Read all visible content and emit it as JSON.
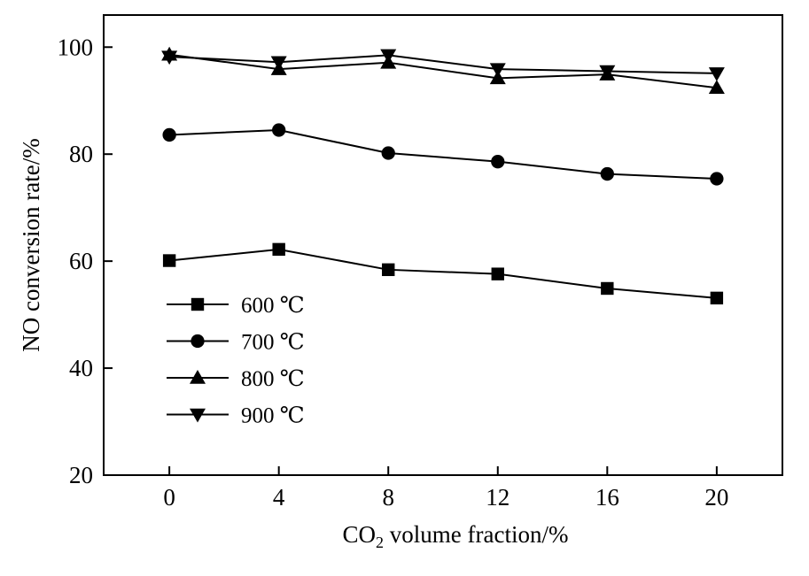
{
  "chart_data": {
    "type": "line",
    "xlabel_main": "CO",
    "xlabel_sub": "2",
    "xlabel_rest": " volume fraction/%",
    "ylabel": "NO conversion rate/%",
    "xlim": [
      -2.4,
      22.4
    ],
    "ylim": [
      20,
      106
    ],
    "x_ticks": [
      0,
      4,
      8,
      12,
      16,
      20
    ],
    "x_tick_labels": [
      "0",
      "4",
      "8",
      "12",
      "16",
      "20"
    ],
    "y_ticks": [
      20,
      40,
      60,
      80,
      100
    ],
    "y_tick_labels": [
      "20",
      "40",
      "60",
      "80",
      "100"
    ],
    "x": [
      0,
      4,
      8,
      12,
      16,
      20
    ],
    "series": [
      {
        "name": "600 ℃",
        "marker": "square",
        "values": [
          60.1,
          62.2,
          58.4,
          57.6,
          54.9,
          53.1
        ]
      },
      {
        "name": "700 ℃",
        "marker": "circle",
        "values": [
          83.6,
          84.5,
          80.2,
          78.6,
          76.3,
          75.4
        ]
      },
      {
        "name": "800 ℃",
        "marker": "triangle-up",
        "values": [
          98.6,
          95.9,
          97.1,
          94.2,
          94.9,
          92.4
        ]
      },
      {
        "name": "900 ℃",
        "marker": "triangle-down",
        "values": [
          98.2,
          97.2,
          98.5,
          95.9,
          95.5,
          95.1
        ]
      }
    ],
    "legend_position": "lower-left",
    "grid": false,
    "colors": {
      "line": "#000000",
      "background": "#ffffff"
    }
  }
}
